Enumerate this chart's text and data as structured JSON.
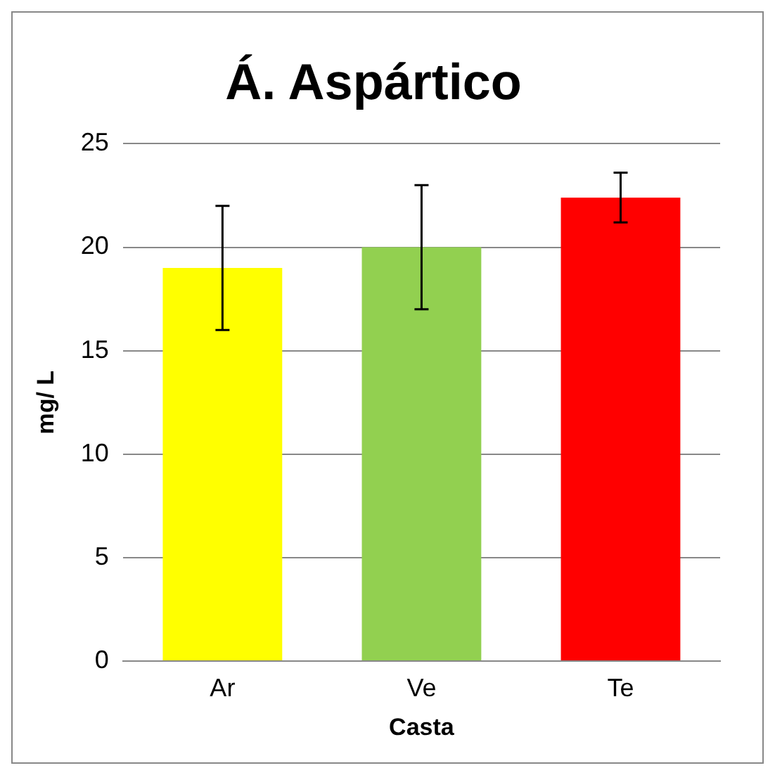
{
  "chart_data": {
    "type": "bar",
    "title": "Á. Aspártico",
    "xlabel": "Casta",
    "ylabel": "mg/ L",
    "categories": [
      "Ar",
      "Ve",
      "Te"
    ],
    "values": [
      19,
      20,
      22.4
    ],
    "colors": [
      "#ffff00",
      "#92d050",
      "#ff0000"
    ],
    "errors": [
      3,
      3,
      1.2
    ],
    "ylim": [
      0,
      25
    ],
    "yticks": [
      0,
      5,
      10,
      15,
      20,
      25
    ],
    "grid": "y",
    "legend": false
  }
}
